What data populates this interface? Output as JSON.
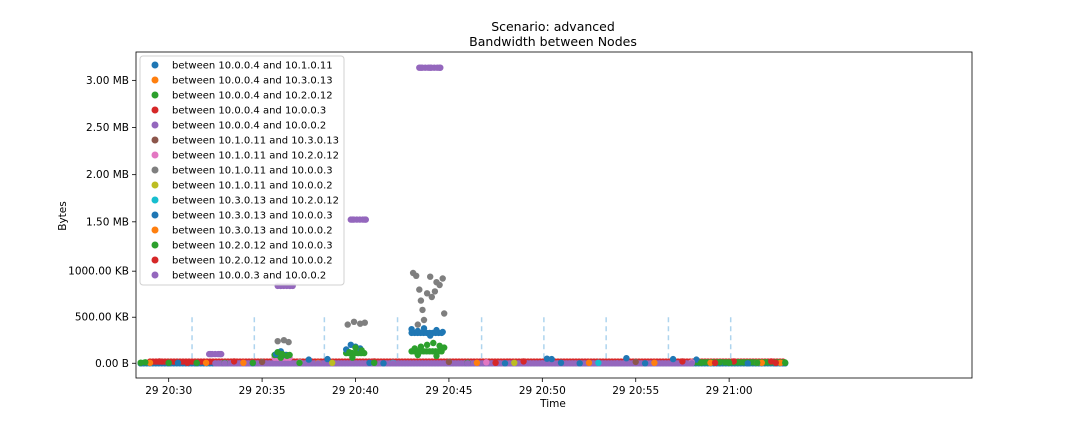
{
  "chart_data": {
    "type": "scatter",
    "title": "Scenario: advanced",
    "subtitle": "Bandwidth between Nodes",
    "xlabel": "Time",
    "ylabel": "Bytes",
    "x_ticks": [
      "29 20:30",
      "29 20:35",
      "29 20:40",
      "29 20:45",
      "29 20:50",
      "29 20:55",
      "29 21:00"
    ],
    "y_ticks": [
      {
        "value": 0,
        "label": "0.00 B"
      },
      {
        "value": 500,
        "label": "500.00 KB"
      },
      {
        "value": 1000,
        "label": "1000.00 KB"
      },
      {
        "value": 1536,
        "label": "1.50 MB"
      },
      {
        "value": 2048,
        "label": "2.00 MB"
      },
      {
        "value": 2560,
        "label": "2.50 MB"
      },
      {
        "value": 3072,
        "label": "3.00 MB"
      }
    ],
    "xlim": [
      "20:28:15",
      "21:13:00"
    ],
    "ylim": [
      -160,
      3380
    ],
    "y_unit": "KB",
    "legend_position": "upper-left",
    "grid": false,
    "markers": [
      {
        "time": "20:31:15",
        "color": "#aed4ee"
      },
      {
        "time": "20:34:35",
        "color": "#aed4ee"
      },
      {
        "time": "20:38:20",
        "color": "#aed4ee"
      },
      {
        "time": "20:42:15",
        "color": "#aed4ee"
      },
      {
        "time": "20:46:45",
        "color": "#aed4ee"
      },
      {
        "time": "20:50:05",
        "color": "#aed4ee"
      },
      {
        "time": "20:53:25",
        "color": "#aed4ee"
      },
      {
        "time": "20:56:45",
        "color": "#aed4ee"
      },
      {
        "time": "21:00:05",
        "color": "#aed4ee"
      }
    ],
    "series": [
      {
        "name": "between 10.0.0.4 and 10.1.0.11",
        "color": "#1f77b4",
        "points": [
          [
            "20:28:30",
            0
          ],
          [
            "20:30:00",
            0
          ],
          [
            "20:31:30",
            0
          ],
          [
            "20:33:00",
            0
          ],
          [
            "20:34:30",
            0
          ],
          [
            "20:35:45",
            100
          ],
          [
            "20:36:00",
            130
          ],
          [
            "20:36:15",
            90
          ],
          [
            "20:37:30",
            40
          ],
          [
            "20:38:30",
            45
          ],
          [
            "20:39:30",
            150
          ],
          [
            "20:39:45",
            200
          ],
          [
            "20:40:00",
            180
          ],
          [
            "20:40:15",
            160
          ],
          [
            "20:41:30",
            0
          ],
          [
            "20:43:00",
            370
          ],
          [
            "20:43:20",
            350
          ],
          [
            "20:43:40",
            380
          ],
          [
            "20:44:00",
            300
          ],
          [
            "20:44:20",
            360
          ],
          [
            "20:44:40",
            340
          ],
          [
            "20:46:00",
            0
          ],
          [
            "20:48:00",
            0
          ],
          [
            "20:50:15",
            50
          ],
          [
            "20:50:30",
            45
          ],
          [
            "20:52:00",
            0
          ],
          [
            "20:54:30",
            55
          ],
          [
            "20:55:30",
            0
          ],
          [
            "20:57:00",
            45
          ],
          [
            "20:58:15",
            40
          ],
          [
            "20:59:30",
            0
          ],
          [
            "21:01:00",
            0
          ],
          [
            "21:02:30",
            0
          ],
          [
            "21:03:00",
            0
          ]
        ]
      },
      {
        "name": "between 10.0.0.4 and 10.3.0.13",
        "color": "#ff7f0e",
        "points": [
          [
            "20:29:00",
            5
          ],
          [
            "20:32:00",
            5
          ],
          [
            "20:38:00",
            5
          ],
          [
            "20:46:30",
            5
          ],
          [
            "20:52:30",
            5
          ],
          [
            "20:59:00",
            5
          ],
          [
            "21:01:30",
            5
          ],
          [
            "21:02:45",
            5
          ]
        ]
      },
      {
        "name": "between 10.0.0.4 and 10.2.0.12",
        "color": "#2ca02c",
        "points": [
          [
            "20:28:45",
            10
          ],
          [
            "20:35:50",
            120
          ],
          [
            "20:36:05",
            100
          ],
          [
            "20:36:20",
            80
          ],
          [
            "20:39:40",
            120
          ],
          [
            "20:40:00",
            170
          ],
          [
            "20:40:20",
            140
          ],
          [
            "20:43:10",
            160
          ],
          [
            "20:43:30",
            180
          ],
          [
            "20:43:50",
            200
          ],
          [
            "20:44:10",
            220
          ],
          [
            "20:44:30",
            190
          ],
          [
            "20:44:45",
            170
          ],
          [
            "20:59:30",
            10
          ],
          [
            "21:00:30",
            10
          ],
          [
            "21:02:00",
            10
          ]
        ]
      },
      {
        "name": "between 10.0.0.4 and 10.0.0.3",
        "color": "#d62728",
        "points": [
          [
            "20:29:30",
            20
          ],
          [
            "20:33:30",
            20
          ],
          [
            "20:41:00",
            20
          ],
          [
            "20:49:00",
            20
          ],
          [
            "20:57:30",
            20
          ],
          [
            "21:00:15",
            20
          ],
          [
            "21:02:15",
            20
          ]
        ]
      },
      {
        "name": "between 10.0.0.4 and 10.0.0.2",
        "color": "#9467bd",
        "points": [
          [
            "20:32:15",
            100
          ],
          [
            "20:32:45",
            100
          ],
          [
            "20:36:00",
            840
          ],
          [
            "20:36:30",
            840
          ],
          [
            "20:39:50",
            1560
          ],
          [
            "20:40:30",
            1560
          ],
          [
            "20:43:30",
            3210
          ],
          [
            "20:44:00",
            3210
          ],
          [
            "20:44:30",
            3210
          ]
        ]
      },
      {
        "name": "between 10.1.0.11 and 10.3.0.13",
        "color": "#8c564b",
        "points": [
          [
            "20:35:00",
            15
          ],
          [
            "20:45:00",
            15
          ],
          [
            "20:55:00",
            15
          ]
        ]
      },
      {
        "name": "between 10.1.0.11 and 10.2.0.12",
        "color": "#e377c2",
        "points": [
          [
            "20:37:00",
            10
          ],
          [
            "20:47:00",
            10
          ],
          [
            "20:58:00",
            10
          ]
        ]
      },
      {
        "name": "between 10.1.0.11 and 10.0.0.3",
        "color": "#7f7f7f",
        "points": [
          [
            "20:35:50",
            240
          ],
          [
            "20:36:10",
            250
          ],
          [
            "20:36:25",
            230
          ],
          [
            "20:39:35",
            420
          ],
          [
            "20:39:55",
            450
          ],
          [
            "20:40:15",
            430
          ],
          [
            "20:40:30",
            440
          ],
          [
            "20:43:05",
            980
          ],
          [
            "20:43:15",
            950
          ],
          [
            "20:43:25",
            800
          ],
          [
            "20:43:30",
            680
          ],
          [
            "20:43:35",
            580
          ],
          [
            "20:43:40",
            470
          ],
          [
            "20:43:50",
            760
          ],
          [
            "20:44:00",
            940
          ],
          [
            "20:44:05",
            720
          ],
          [
            "20:44:15",
            780
          ],
          [
            "20:44:20",
            880
          ],
          [
            "20:44:30",
            850
          ],
          [
            "20:44:40",
            920
          ],
          [
            "20:44:45",
            540
          ],
          [
            "20:43:20",
            420
          ]
        ]
      },
      {
        "name": "between 10.1.0.11 and 10.0.0.2",
        "color": "#bcbd22",
        "points": [
          [
            "20:38:45",
            5
          ],
          [
            "20:48:30",
            5
          ]
        ]
      },
      {
        "name": "between 10.3.0.13 and 10.2.0.12",
        "color": "#17becf",
        "points": [
          [
            "20:42:00",
            5
          ],
          [
            "20:53:00",
            5
          ]
        ]
      },
      {
        "name": "between 10.3.0.13 and 10.0.0.3",
        "color": "#1f77b4",
        "points": [
          [
            "20:30:30",
            5
          ],
          [
            "20:40:45",
            5
          ],
          [
            "20:51:00",
            5
          ]
        ]
      },
      {
        "name": "between 10.3.0.13 and 10.0.0.2",
        "color": "#ff7f0e",
        "points": [
          [
            "20:34:00",
            5
          ],
          [
            "20:56:00",
            5
          ],
          [
            "21:01:45",
            5
          ]
        ]
      },
      {
        "name": "between 10.2.0.12 and 10.0.0.3",
        "color": "#2ca02c",
        "points": [
          [
            "20:28:30",
            5
          ],
          [
            "20:30:00",
            5
          ],
          [
            "20:31:30",
            5
          ],
          [
            "20:33:00",
            5
          ],
          [
            "20:34:30",
            5
          ],
          [
            "20:36:00",
            60
          ],
          [
            "20:37:00",
            5
          ],
          [
            "20:39:50",
            60
          ],
          [
            "20:41:00",
            5
          ],
          [
            "20:43:20",
            90
          ],
          [
            "20:44:20",
            80
          ],
          [
            "20:46:00",
            5
          ],
          [
            "20:58:30",
            5
          ],
          [
            "21:00:00",
            5
          ],
          [
            "21:01:30",
            5
          ],
          [
            "21:03:00",
            5
          ]
        ]
      },
      {
        "name": "between 10.2.0.12 and 10.0.0.2",
        "color": "#d62728",
        "points": [
          [
            "20:31:00",
            5
          ],
          [
            "20:47:30",
            5
          ],
          [
            "20:59:15",
            5
          ],
          [
            "21:02:30",
            5
          ]
        ]
      },
      {
        "name": "between 10.0.0.3 and 10.0.0.2",
        "color": "#9467bd",
        "points": [
          [
            "20:33:00",
            0
          ],
          [
            "20:38:00",
            0
          ],
          [
            "20:42:00",
            0
          ],
          [
            "20:46:00",
            0
          ],
          [
            "20:50:00",
            0
          ],
          [
            "20:54:00",
            0
          ],
          [
            "20:58:00",
            0
          ]
        ]
      }
    ],
    "bands": [
      {
        "series": 12,
        "from": "20:28:30",
        "to": "21:03:00",
        "value": 5
      },
      {
        "series": 0,
        "from": "20:28:30",
        "to": "21:03:00",
        "value": 0
      },
      {
        "series": 3,
        "from": "20:29:00",
        "to": "21:03:00",
        "value": 18
      },
      {
        "series": 14,
        "from": "20:32:30",
        "to": "20:58:00",
        "value": 0
      },
      {
        "series": 6,
        "from": "20:35:40",
        "to": "20:36:30",
        "value": 60
      },
      {
        "series": 12,
        "from": "20:35:40",
        "to": "20:36:30",
        "value": 90
      },
      {
        "series": 12,
        "from": "20:39:30",
        "to": "20:40:30",
        "value": 110
      },
      {
        "series": 12,
        "from": "20:43:00",
        "to": "20:44:45",
        "value": 130
      },
      {
        "series": 0,
        "from": "20:43:00",
        "to": "20:44:45",
        "value": 330
      },
      {
        "series": 4,
        "from": "20:43:25",
        "to": "20:44:40",
        "value": 3210
      },
      {
        "series": 4,
        "from": "20:39:45",
        "to": "20:40:40",
        "value": 1560
      },
      {
        "series": 4,
        "from": "20:35:50",
        "to": "20:36:45",
        "value": 840
      },
      {
        "series": 4,
        "from": "20:32:10",
        "to": "20:32:50",
        "value": 100
      },
      {
        "series": 12,
        "from": "20:58:00",
        "to": "21:03:00",
        "value": 10
      }
    ]
  }
}
